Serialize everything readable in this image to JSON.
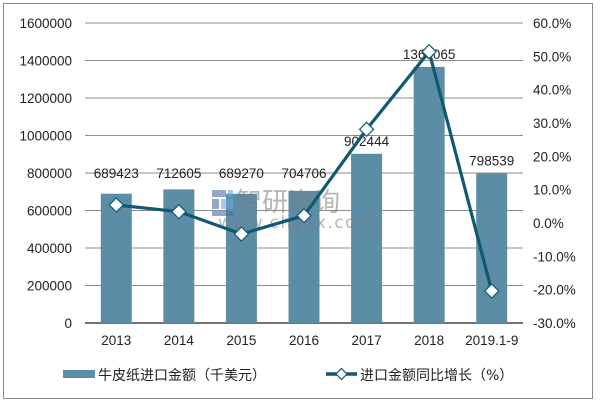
{
  "chart_data": {
    "type": "bar+line",
    "title": "",
    "categories": [
      "2013",
      "2014",
      "2015",
      "2016",
      "2017",
      "2018",
      "2019.1-9"
    ],
    "series": [
      {
        "name": "牛皮纸进口金额（千美元）",
        "type": "bar",
        "axis": "left",
        "color": "#5b8ea6",
        "values": [
          689423,
          712605,
          689270,
          704706,
          902444,
          1366065,
          798539
        ],
        "labels": [
          "689423",
          "712605",
          "689270",
          "704706",
          "902444",
          "1366065",
          "798539"
        ]
      },
      {
        "name": "进口金额同比增长（%）",
        "type": "line",
        "axis": "right",
        "color": "#115870",
        "marker": "diamond",
        "values": [
          5.4,
          3.4,
          -3.3,
          2.2,
          28.1,
          51.4,
          -20.4
        ]
      }
    ],
    "left_axis": {
      "ticks": [
        "1600000",
        "1400000",
        "1200000",
        "1000000",
        "800000",
        "600000",
        "400000",
        "200000",
        "0"
      ],
      "ylim": [
        0,
        1600000
      ]
    },
    "right_axis": {
      "ticks": [
        "60.0%",
        "50.0%",
        "40.0%",
        "30.0%",
        "20.0%",
        "10.0%",
        "0.0%",
        "-10.0%",
        "-20.0%",
        "-30.0%"
      ],
      "ylim": [
        -30,
        60
      ]
    },
    "xlabel": "",
    "ylabel": "",
    "grid": true,
    "legend_position": "bottom"
  },
  "legend": {
    "bar_label": "牛皮纸进口金额（千美元）",
    "line_label": "进口金额同比增长（%）"
  },
  "watermark": {
    "brand": "智研咨询",
    "url": "www.chyxx.com"
  }
}
